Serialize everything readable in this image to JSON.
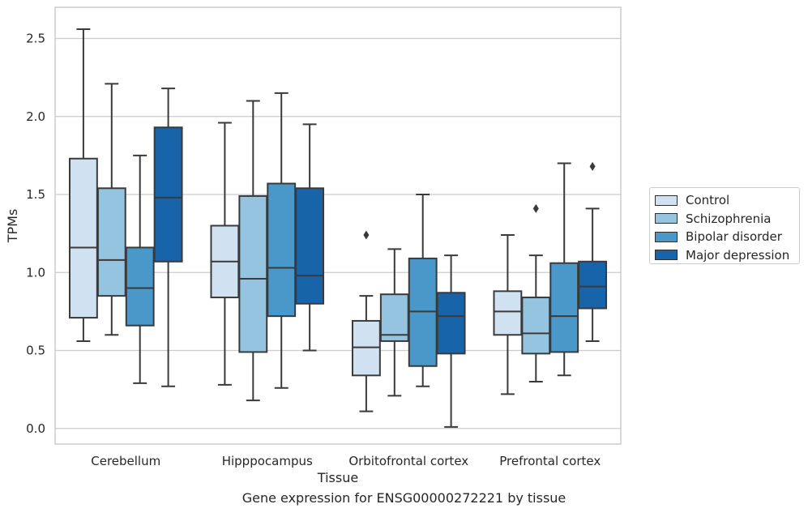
{
  "chart_data": {
    "type": "boxplot",
    "title": "",
    "caption": "Gene expression for ENSG00000272221 by tissue",
    "xlabel": "Tissue",
    "ylabel": "TPMs",
    "ylim": [
      -0.1,
      2.7
    ],
    "yticks": [
      "0.0",
      "0.5",
      "1.0",
      "1.5",
      "2.0",
      "2.5"
    ],
    "grid": "horizontal",
    "legend_position": "right",
    "categories": [
      "Cerebellum",
      "Hipppocampus",
      "Orbitofrontal cortex",
      "Prefrontal cortex"
    ],
    "series": [
      {
        "name": "Control",
        "color": "#d0e1f2",
        "boxes": [
          {
            "whisker_low": 0.56,
            "q1": 0.71,
            "median": 1.16,
            "q3": 1.73,
            "whisker_high": 2.56,
            "outliers": []
          },
          {
            "whisker_low": 0.28,
            "q1": 0.84,
            "median": 1.07,
            "q3": 1.3,
            "whisker_high": 1.96,
            "outliers": []
          },
          {
            "whisker_low": 0.11,
            "q1": 0.34,
            "median": 0.52,
            "q3": 0.69,
            "whisker_high": 0.85,
            "outliers": [
              1.24
            ]
          },
          {
            "whisker_low": 0.22,
            "q1": 0.6,
            "median": 0.75,
            "q3": 0.88,
            "whisker_high": 1.24,
            "outliers": []
          }
        ]
      },
      {
        "name": "Schizophrenia",
        "color": "#94c4df",
        "boxes": [
          {
            "whisker_low": 0.6,
            "q1": 0.85,
            "median": 1.08,
            "q3": 1.54,
            "whisker_high": 2.21,
            "outliers": []
          },
          {
            "whisker_low": 0.18,
            "q1": 0.49,
            "median": 0.96,
            "q3": 1.49,
            "whisker_high": 2.1,
            "outliers": []
          },
          {
            "whisker_low": 0.21,
            "q1": 0.56,
            "median": 0.6,
            "q3": 0.86,
            "whisker_high": 1.15,
            "outliers": []
          },
          {
            "whisker_low": 0.3,
            "q1": 0.48,
            "median": 0.61,
            "q3": 0.84,
            "whisker_high": 1.11,
            "outliers": [
              1.41
            ]
          }
        ]
      },
      {
        "name": "Bipolar disorder",
        "color": "#4a98c9",
        "boxes": [
          {
            "whisker_low": 0.29,
            "q1": 0.66,
            "median": 0.9,
            "q3": 1.16,
            "whisker_high": 1.75,
            "outliers": []
          },
          {
            "whisker_low": 0.26,
            "q1": 0.72,
            "median": 1.03,
            "q3": 1.57,
            "whisker_high": 2.15,
            "outliers": []
          },
          {
            "whisker_low": 0.27,
            "q1": 0.4,
            "median": 0.75,
            "q3": 1.09,
            "whisker_high": 1.5,
            "outliers": []
          },
          {
            "whisker_low": 0.34,
            "q1": 0.49,
            "median": 0.72,
            "q3": 1.06,
            "whisker_high": 1.7,
            "outliers": []
          }
        ]
      },
      {
        "name": "Major depression",
        "color": "#1764ab",
        "boxes": [
          {
            "whisker_low": 0.27,
            "q1": 1.07,
            "median": 1.48,
            "q3": 1.93,
            "whisker_high": 2.18,
            "outliers": []
          },
          {
            "whisker_low": 0.5,
            "q1": 0.8,
            "median": 0.98,
            "q3": 1.54,
            "whisker_high": 1.95,
            "outliers": []
          },
          {
            "whisker_low": 0.01,
            "q1": 0.48,
            "median": 0.72,
            "q3": 0.87,
            "whisker_high": 1.11,
            "outliers": []
          },
          {
            "whisker_low": 0.56,
            "q1": 0.77,
            "median": 0.91,
            "q3": 1.07,
            "whisker_high": 1.41,
            "outliers": [
              1.68
            ]
          }
        ]
      }
    ]
  }
}
